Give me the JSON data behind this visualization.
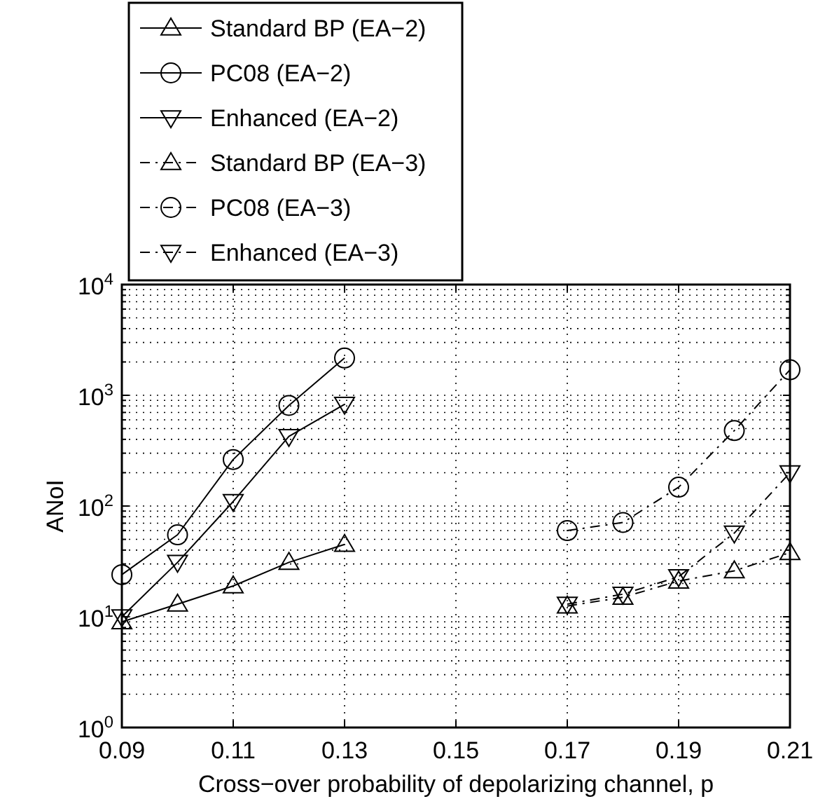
{
  "chart_data": {
    "type": "line",
    "xlabel": "Cross−over probability of depolarizing channel, p",
    "ylabel": "ANoI",
    "log": "y",
    "grid": true,
    "legend": "top left",
    "xlim": [
      0.09,
      0.21
    ],
    "xticks": [
      0.09,
      0.11,
      0.13,
      0.15,
      0.17,
      0.19,
      0.21
    ],
    "ylim": [
      1,
      10000
    ],
    "yticks": [
      {
        "value": 1,
        "label": "10$^{0}$"
      },
      {
        "value": 10,
        "label": "10$^{1}$"
      },
      {
        "value": 100,
        "label": "10$^{2}$"
      },
      {
        "value": 1000,
        "label": "10$^{3}$"
      },
      {
        "value": 10000,
        "label": "10$^{4}$"
      }
    ],
    "series": [
      {
        "name": "Standard BP (EA−2)",
        "color": "#000000",
        "marker": "triangle",
        "line_style": "solid",
        "x": [
          0.09,
          0.1,
          0.11,
          0.12,
          0.13
        ],
        "values": [
          9,
          13,
          19,
          31,
          45
        ]
      },
      {
        "name": "PC08 (EA−2)",
        "color": "#000000",
        "marker": "circle",
        "line_style": "solid",
        "x": [
          0.09,
          0.1,
          0.11,
          0.12,
          0.13
        ],
        "values": [
          24,
          55,
          263,
          810,
          2170
        ]
      },
      {
        "name": "Enhanced (EA−2)",
        "color": "#000000",
        "marker": "triangle-down",
        "line_style": "solid",
        "x": [
          0.09,
          0.1,
          0.11,
          0.12,
          0.13
        ],
        "values": [
          10,
          31,
          110,
          425,
          830
        ]
      },
      {
        "name": "Standard BP (EA−3)",
        "color": "#000000",
        "marker": "triangle",
        "line_style": "dashed",
        "x": [
          0.17,
          0.18,
          0.19,
          0.2,
          0.21
        ],
        "values": [
          12.5,
          15,
          21,
          26,
          38
        ]
      },
      {
        "name": "PC08 (EA−3)",
        "color": "#000000",
        "marker": "circle",
        "line_style": "dashed",
        "x": [
          0.17,
          0.18,
          0.19,
          0.2,
          0.21
        ],
        "values": [
          60,
          71,
          148,
          480,
          1700
        ]
      },
      {
        "name": "Enhanced (EA−3)",
        "color": "#000000",
        "marker": "triangle-down",
        "line_style": "dashed",
        "x": [
          0.17,
          0.18,
          0.19,
          0.2,
          0.21
        ],
        "values": [
          13,
          16,
          23,
          57,
          200
        ]
      }
    ]
  }
}
